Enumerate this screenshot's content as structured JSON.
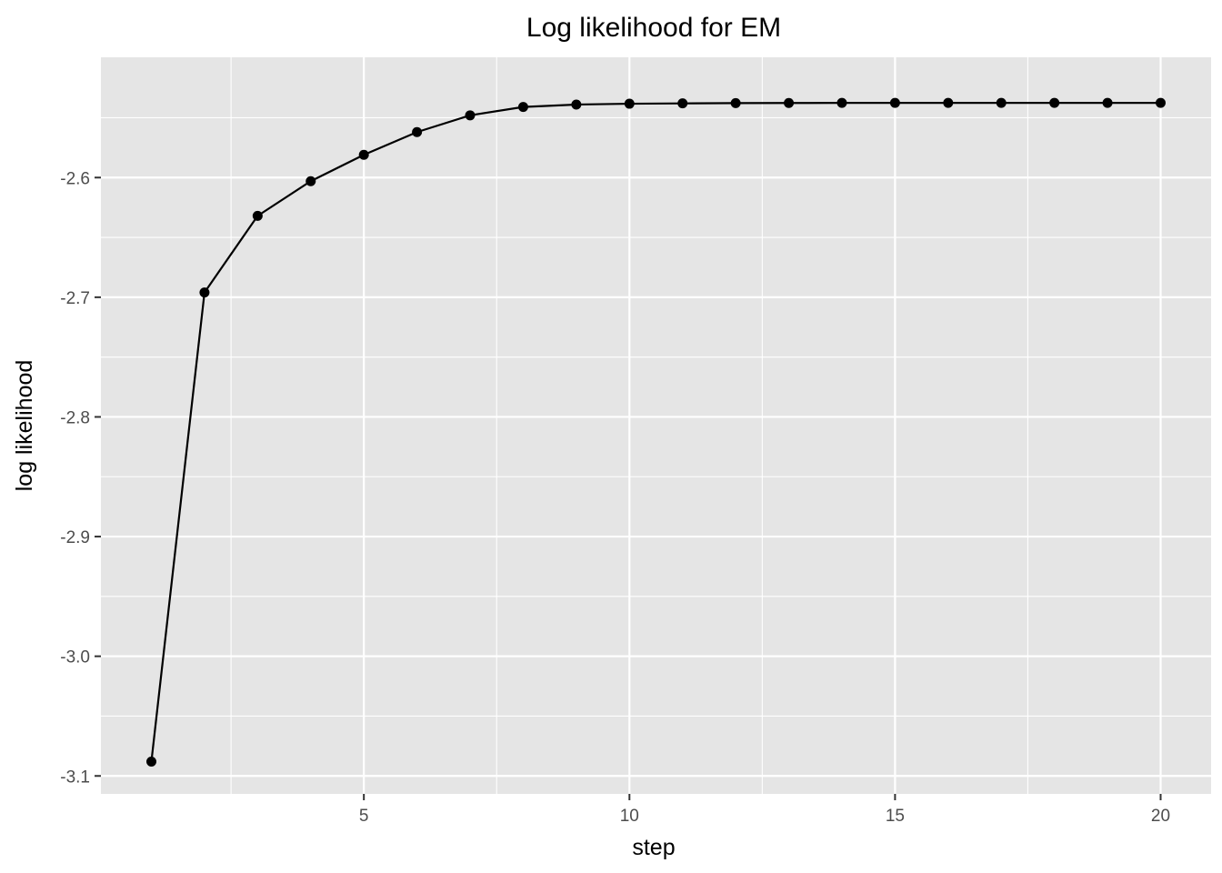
{
  "chart_data": {
    "type": "line",
    "title": "Log likelihood for EM",
    "xlabel": "step",
    "ylabel": "log likelihood",
    "xlim": [
      0.05,
      20.95
    ],
    "ylim": [
      -3.115,
      -2.4995
    ],
    "x_ticks": [
      5,
      10,
      15,
      20
    ],
    "x_minor_ticks": [
      2.5,
      7.5,
      12.5,
      17.5
    ],
    "y_ticks": [
      -3.1,
      -3.0,
      -2.9,
      -2.8,
      -2.7,
      -2.6
    ],
    "y_tick_labels": [
      "-3.1",
      "-3.0",
      "-2.9",
      "-2.8",
      "-2.7",
      "-2.6"
    ],
    "y_minor_ticks": [
      -3.05,
      -2.95,
      -2.85,
      -2.75,
      -2.65,
      -2.55
    ],
    "grid": true,
    "legend": "none",
    "series": [
      {
        "color": "#000000",
        "x": [
          1,
          2,
          3,
          4,
          5,
          6,
          7,
          8,
          9,
          10,
          11,
          12,
          13,
          14,
          15,
          16,
          17,
          18,
          19,
          20
        ],
        "y": [
          -3.088,
          -2.696,
          -2.632,
          -2.603,
          -2.581,
          -2.562,
          -2.548,
          -2.541,
          -2.539,
          -2.5383,
          -2.538,
          -2.5378,
          -2.5377,
          -2.5376,
          -2.5376,
          -2.5376,
          -2.5376,
          -2.5376,
          -2.5376,
          -2.5376
        ]
      }
    ]
  }
}
